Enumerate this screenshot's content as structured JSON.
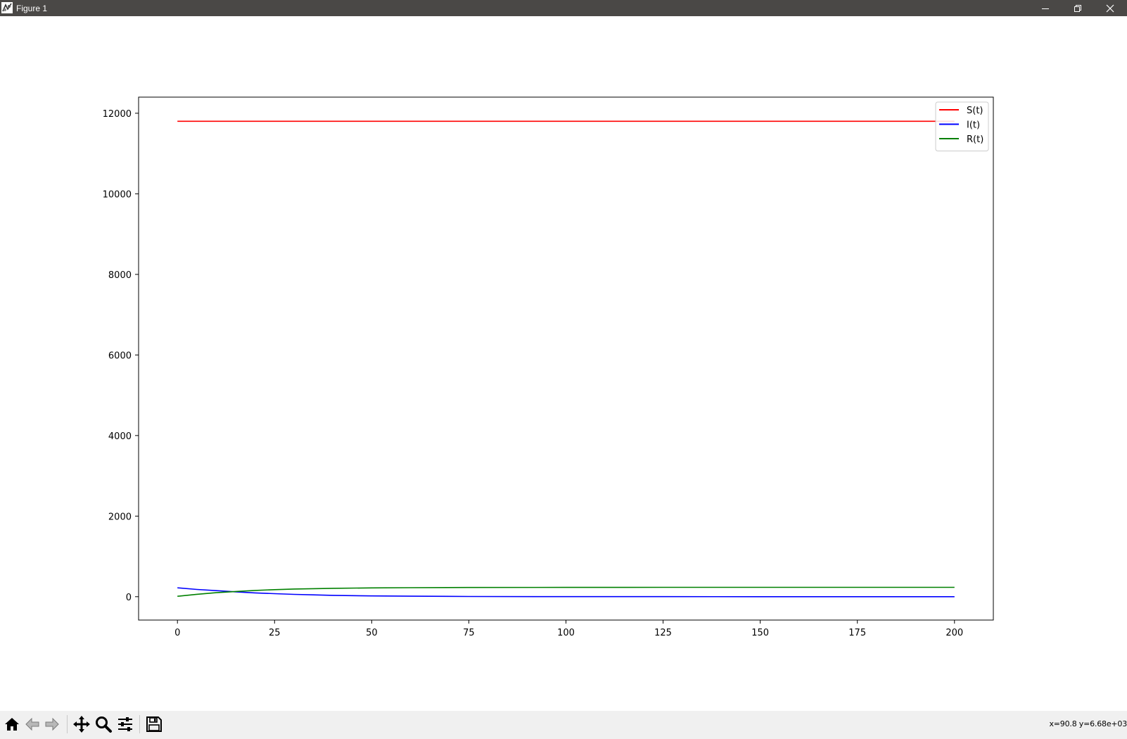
{
  "window": {
    "title": "Figure 1",
    "icon": "matplotlib-figure-icon",
    "controls": [
      "minimize-icon",
      "restore-icon",
      "close-icon"
    ]
  },
  "toolbar": {
    "buttons": [
      {
        "name": "home-button",
        "icon": "home-icon"
      },
      {
        "name": "back-button",
        "icon": "arrow-left-icon"
      },
      {
        "name": "forward-button",
        "icon": "arrow-right-icon"
      },
      {
        "name": "pan-button",
        "icon": "move-icon"
      },
      {
        "name": "zoom-button",
        "icon": "magnifier-icon"
      },
      {
        "name": "configure-subplots-button",
        "icon": "sliders-icon"
      },
      {
        "name": "save-button",
        "icon": "floppy-disk-icon"
      }
    ],
    "status": "x=90.8 y=6.68e+03"
  },
  "chart_data": {
    "type": "line",
    "title": "",
    "xlabel": "",
    "ylabel": "",
    "xlim": [
      -10,
      210
    ],
    "ylim": [
      -580,
      12400
    ],
    "x_ticks": [
      0,
      25,
      50,
      75,
      100,
      125,
      150,
      175,
      200
    ],
    "x_tick_labels": [
      "0",
      "25",
      "50",
      "75",
      "100",
      "125",
      "150",
      "175",
      "200"
    ],
    "y_ticks": [
      0,
      2000,
      4000,
      6000,
      8000,
      10000,
      12000
    ],
    "y_tick_labels": [
      "0",
      "2000",
      "4000",
      "6000",
      "8000",
      "10000",
      "12000"
    ],
    "grid": false,
    "legend_position": "upper right",
    "x": [
      0,
      5,
      10,
      15,
      20,
      25,
      30,
      35,
      40,
      50,
      60,
      75,
      100,
      125,
      150,
      175,
      200
    ],
    "series": [
      {
        "name": "S(t)",
        "color": "#ff0000",
        "values": [
          11800,
          11800,
          11800,
          11800,
          11800,
          11800,
          11800,
          11800,
          11800,
          11800,
          11800,
          11800,
          11800,
          11800,
          11800,
          11800,
          11800
        ]
      },
      {
        "name": "I(t)",
        "color": "#0000ff",
        "values": [
          220,
          180,
          150,
          120,
          95,
          75,
          58,
          45,
          34,
          20,
          12,
          5,
          2,
          1,
          0,
          0,
          0
        ]
      },
      {
        "name": "R(t)",
        "color": "#008000",
        "values": [
          10,
          60,
          100,
          130,
          155,
          175,
          190,
          200,
          208,
          218,
          224,
          228,
          231,
          232,
          233,
          233,
          233
        ]
      }
    ]
  }
}
